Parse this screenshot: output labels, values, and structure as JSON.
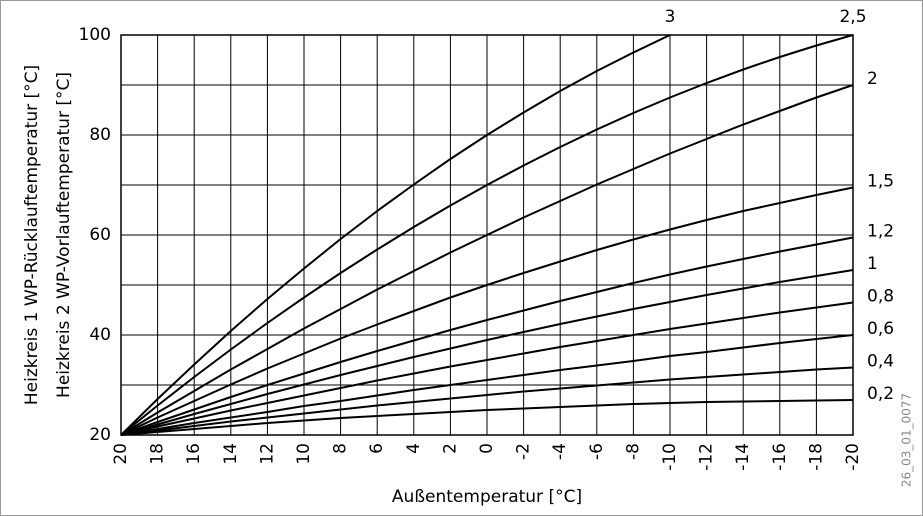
{
  "chart_data": {
    "type": "line",
    "xlabel": "Außentemperatur [°C]",
    "ylabel_lines": [
      "Heizkreis 1 WP-Rücklauftemperatur [°C]",
      "Heizkreis 2 WP-Vorlauftemperatur [°C]"
    ],
    "code": "26_03_01_0077",
    "x": [
      20,
      18,
      16,
      14,
      12,
      10,
      8,
      6,
      4,
      2,
      0,
      -2,
      -4,
      -6,
      -8,
      -10,
      -12,
      -14,
      -16,
      -18,
      -20
    ],
    "xlim": [
      20,
      -20
    ],
    "xticks": [
      20,
      18,
      16,
      14,
      12,
      10,
      8,
      6,
      4,
      2,
      0,
      -2,
      -4,
      -6,
      -8,
      -10,
      -12,
      -14,
      -16,
      -18,
      -20
    ],
    "ylim": [
      20,
      100
    ],
    "yticks": [
      20,
      40,
      60,
      80,
      100
    ],
    "y_minor_ticks": [
      30,
      50,
      70,
      90
    ],
    "grid": true,
    "series": [
      {
        "name": "3",
        "color": "#000000",
        "values": [
          20,
          27.2,
          34.1,
          40.8,
          47.2,
          53.3,
          59.2,
          64.8,
          70.1,
          75.2,
          80,
          84.5,
          88.8,
          92.8,
          96.5,
          100,
          null,
          null,
          null,
          null,
          null
        ]
      },
      {
        "name": "2,5",
        "color": "#000000",
        "values": [
          20,
          25.9,
          31.6,
          37.1,
          42.4,
          47.5,
          52.4,
          57.1,
          61.6,
          65.9,
          70,
          73.9,
          77.6,
          81.1,
          84.4,
          87.5,
          90.4,
          93.1,
          95.6,
          97.9,
          100
        ]
      },
      {
        "name": "2",
        "color": "#000000",
        "values": [
          20,
          24.5,
          28.8,
          33.1,
          37.2,
          41.3,
          45.2,
          49.1,
          52.8,
          56.5,
          60,
          63.5,
          66.8,
          70.1,
          73.2,
          76.3,
          79.2,
          82.1,
          84.8,
          87.5,
          90
        ]
      },
      {
        "name": "1,5",
        "color": "#000000",
        "values": [
          20,
          23.5,
          26.8,
          30.1,
          33.3,
          36.3,
          39.3,
          42.1,
          44.8,
          47.5,
          50,
          52.4,
          54.7,
          57.0,
          59.1,
          61.1,
          63.0,
          64.8,
          66.4,
          68.0,
          69.5
        ]
      },
      {
        "name": "1,2",
        "color": "#000000",
        "values": [
          20,
          22.6,
          25.1,
          27.6,
          30.0,
          32.3,
          34.6,
          36.8,
          38.9,
          41.0,
          43,
          44.9,
          46.8,
          48.6,
          50.4,
          52.1,
          53.7,
          55.2,
          56.7,
          58.1,
          59.5
        ]
      },
      {
        "name": "1",
        "color": "#000000",
        "values": [
          20,
          22.1,
          24.2,
          26.2,
          28.2,
          30.1,
          32.0,
          33.8,
          35.6,
          37.3,
          39,
          40.6,
          42.2,
          43.7,
          45.2,
          46.6,
          48.0,
          49.3,
          50.6,
          51.8,
          53
        ]
      },
      {
        "name": "0,8",
        "color": "#000000",
        "values": [
          20,
          21.7,
          23.3,
          24.9,
          26.4,
          27.9,
          29.4,
          30.9,
          32.3,
          33.7,
          35,
          36.3,
          37.6,
          38.8,
          40.0,
          41.2,
          42.3,
          43.4,
          44.5,
          45.5,
          46.5
        ]
      },
      {
        "name": "0,6",
        "color": "#000000",
        "values": [
          20,
          21.2,
          22.4,
          23.5,
          24.6,
          25.8,
          26.8,
          27.9,
          29.0,
          30.0,
          31,
          32.0,
          33.0,
          33.9,
          34.8,
          35.8,
          36.6,
          37.5,
          38.4,
          39.2,
          40
        ]
      },
      {
        "name": "0,4",
        "color": "#000000",
        "values": [
          20,
          20.9,
          21.8,
          22.7,
          23.5,
          24.3,
          25.1,
          25.9,
          26.6,
          27.3,
          28,
          28.7,
          29.3,
          29.9,
          30.5,
          31.1,
          31.6,
          32.1,
          32.6,
          33.1,
          33.5
        ]
      },
      {
        "name": "0,2",
        "color": "#000000",
        "values": [
          20,
          20.6,
          21.2,
          21.8,
          22.4,
          22.9,
          23.4,
          23.8,
          24.2,
          24.6,
          25,
          25.3,
          25.6,
          25.9,
          26.2,
          26.4,
          26.6,
          26.7,
          26.8,
          26.9,
          27
        ]
      }
    ]
  }
}
